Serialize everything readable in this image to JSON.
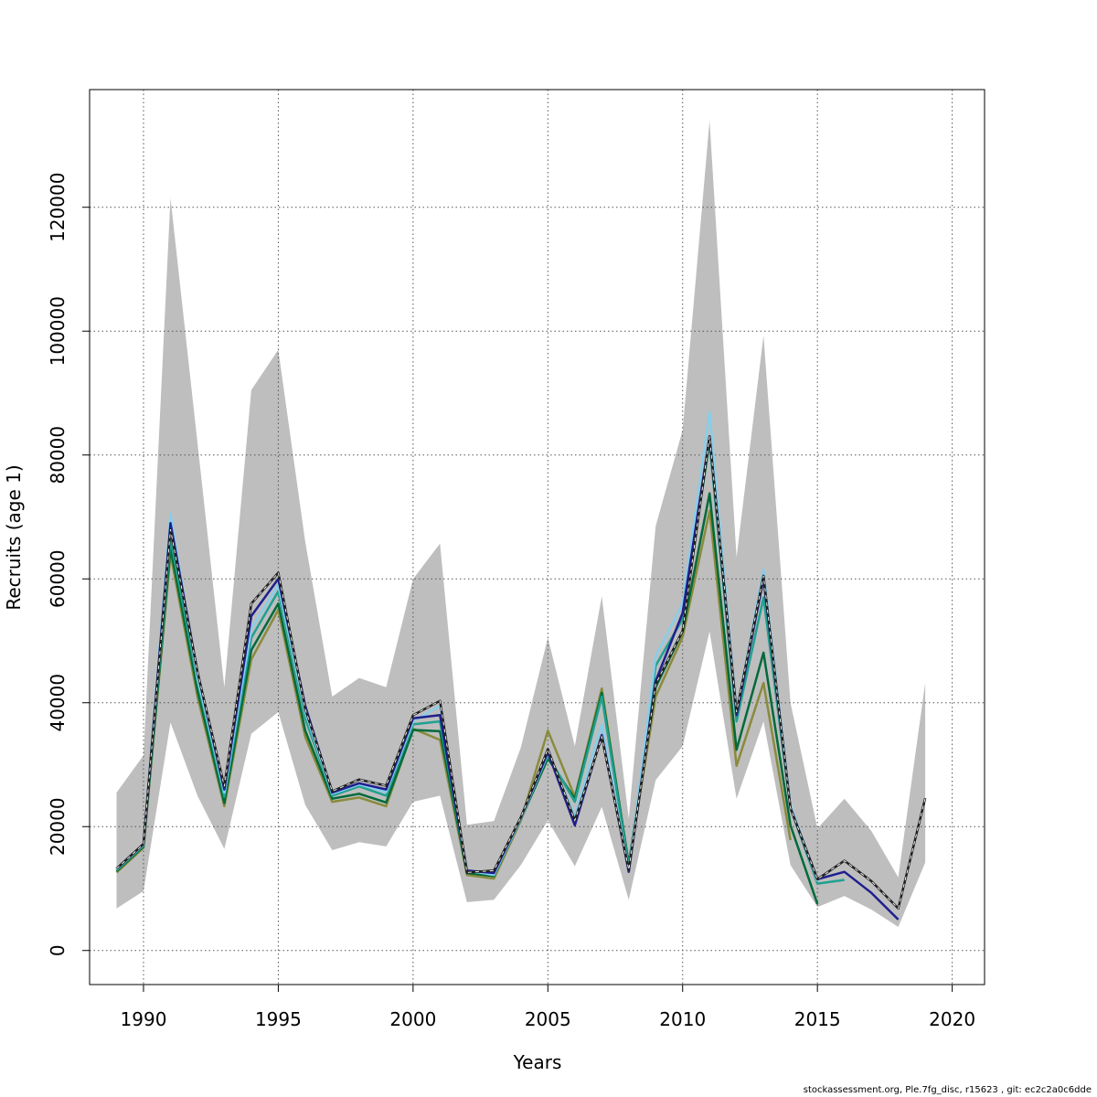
{
  "chart_data": {
    "type": "line",
    "title": "",
    "xlabel": "Years",
    "ylabel": "Recruits (age 1)",
    "xlim": [
      1988,
      2021.2
    ],
    "ylim": [
      -5500,
      139000
    ],
    "x_ticks": [
      1990,
      1995,
      2000,
      2005,
      2010,
      2015,
      2020
    ],
    "y_ticks": [
      0,
      20000,
      40000,
      60000,
      80000,
      100000,
      120000
    ],
    "grid": true,
    "legend": "none",
    "band": {
      "color": "#bebebe",
      "x": [
        1989,
        1990,
        1991,
        1992,
        1993,
        1994,
        1995,
        1996,
        1997,
        1998,
        1999,
        2000,
        2001,
        2002,
        2003,
        2004,
        2005,
        2006,
        2007,
        2008,
        2009,
        2010,
        2011,
        2012,
        2013,
        2014,
        2015,
        2016,
        2017,
        2018,
        2019
      ],
      "lower": [
        6800,
        9600,
        36800,
        25000,
        16400,
        35000,
        38500,
        23500,
        16200,
        17500,
        16800,
        24000,
        25000,
        7800,
        8200,
        13800,
        21000,
        13600,
        23200,
        8200,
        27500,
        33000,
        51500,
        24500,
        37000,
        13800,
        7000,
        8800,
        6600,
        3800,
        14200
      ],
      "upper": [
        25500,
        31500,
        121500,
        82000,
        42500,
        90500,
        97000,
        66000,
        41000,
        44000,
        42500,
        60000,
        65700,
        20300,
        20900,
        32800,
        50500,
        33000,
        57200,
        21300,
        68500,
        84000,
        134000,
        63500,
        99300,
        40000,
        19700,
        24500,
        19300,
        11800,
        43200
      ]
    },
    "series": [
      {
        "color": "#8a8a3c",
        "x": [
          1989,
          1990,
          1991,
          1992,
          1993,
          1994,
          1995,
          1996,
          1997,
          1998,
          1999,
          2000,
          2001,
          2002,
          2003,
          2004,
          2005,
          2006,
          2007,
          2008,
          2009,
          2010,
          2011,
          2012,
          2013,
          2014
        ],
        "values": [
          12600,
          16600,
          64000,
          41000,
          23300,
          47000,
          55000,
          34500,
          24000,
          24700,
          23300,
          35800,
          34000,
          12200,
          11600,
          21000,
          35500,
          24800,
          42300,
          13800,
          41000,
          50600,
          71000,
          29800,
          43200,
          17800
        ]
      },
      {
        "color": "#006a3a",
        "x": [
          1989,
          1990,
          1991,
          1992,
          1993,
          1994,
          1995,
          1996,
          1997,
          1998,
          1999,
          2000,
          2001,
          2002,
          2003,
          2004,
          2005,
          2006,
          2007,
          2008,
          2009,
          2010,
          2011,
          2012,
          2013,
          2014,
          2015
        ],
        "values": [
          12800,
          16800,
          65000,
          42000,
          23800,
          48500,
          56000,
          35500,
          24500,
          25300,
          23900,
          35600,
          35400,
          12500,
          12000,
          21200,
          31000,
          24500,
          41600,
          14000,
          42500,
          51500,
          73800,
          32400,
          48100,
          20200,
          7500
        ]
      },
      {
        "color": "#20a090",
        "x": [
          1989,
          1990,
          1991,
          1992,
          1993,
          1994,
          1995,
          1996,
          1997,
          1998,
          1999,
          2000,
          2001,
          2002,
          2003,
          2004,
          2005,
          2006,
          2007,
          2008,
          2009,
          2010,
          2011,
          2012,
          2013,
          2014,
          2015,
          2016
        ],
        "values": [
          13000,
          17000,
          66500,
          43500,
          24800,
          50500,
          58000,
          37500,
          25000,
          26500,
          25000,
          36500,
          37000,
          12800,
          12300,
          21400,
          31500,
          24000,
          41000,
          13500,
          46000,
          53500,
          82000,
          37000,
          57000,
          23000,
          10800,
          11400
        ]
      },
      {
        "color": "#87ceeb",
        "x": [
          1989,
          1990,
          1991,
          1992,
          1993,
          1994,
          1995,
          1996,
          1997,
          1998,
          1999,
          2000,
          2001,
          2002,
          2003,
          2004,
          2005,
          2006,
          2007,
          2008,
          2009,
          2010,
          2011,
          2012,
          2013,
          2014,
          2015
        ],
        "values": [
          13100,
          17100,
          70500,
          44000,
          25500,
          52000,
          59000,
          38500,
          25300,
          26800,
          25600,
          37000,
          39500,
          12900,
          12200,
          21300,
          31800,
          21800,
          36500,
          12800,
          47500,
          56000,
          87000,
          38500,
          61500,
          23500,
          11200
        ]
      },
      {
        "color": "#1f1f8f",
        "x": [
          1989,
          1990,
          1991,
          1992,
          1993,
          1994,
          1995,
          1996,
          1997,
          1998,
          1999,
          2000,
          2001,
          2002,
          2003,
          2004,
          2005,
          2006,
          2007,
          2008,
          2009,
          2010,
          2011,
          2012,
          2013,
          2014,
          2015,
          2016,
          2017,
          2018
        ],
        "values": [
          13200,
          17200,
          69000,
          45000,
          26000,
          54000,
          60000,
          39500,
          25500,
          27000,
          26000,
          37500,
          38000,
          12900,
          12500,
          21500,
          32000,
          20200,
          34800,
          12700,
          43500,
          54500,
          83000,
          38000,
          60000,
          23000,
          11500,
          12700,
          9300,
          5000
        ]
      },
      {
        "color": "#202020",
        "dashed": true,
        "x": [
          1989,
          1990,
          1991,
          1992,
          1993,
          1994,
          1995,
          1996,
          1997,
          1998,
          1999,
          2000,
          2001,
          2002,
          2003,
          2004,
          2005,
          2006,
          2007,
          2008,
          2009,
          2010,
          2011,
          2012,
          2013,
          2014,
          2015,
          2016,
          2017,
          2018,
          2019
        ],
        "values": [
          13200,
          17200,
          68000,
          45000,
          26500,
          56000,
          61000,
          39000,
          25700,
          27600,
          26600,
          38000,
          40300,
          12600,
          12900,
          21500,
          32500,
          21000,
          34500,
          13000,
          43000,
          51600,
          83000,
          38500,
          60500,
          23000,
          11500,
          14500,
          11200,
          6800,
          24600
        ]
      }
    ]
  },
  "footer": {
    "note": "stockassessment.org, Ple.7fg_disc, r15623 , git: ec2c2a0c6dde"
  }
}
